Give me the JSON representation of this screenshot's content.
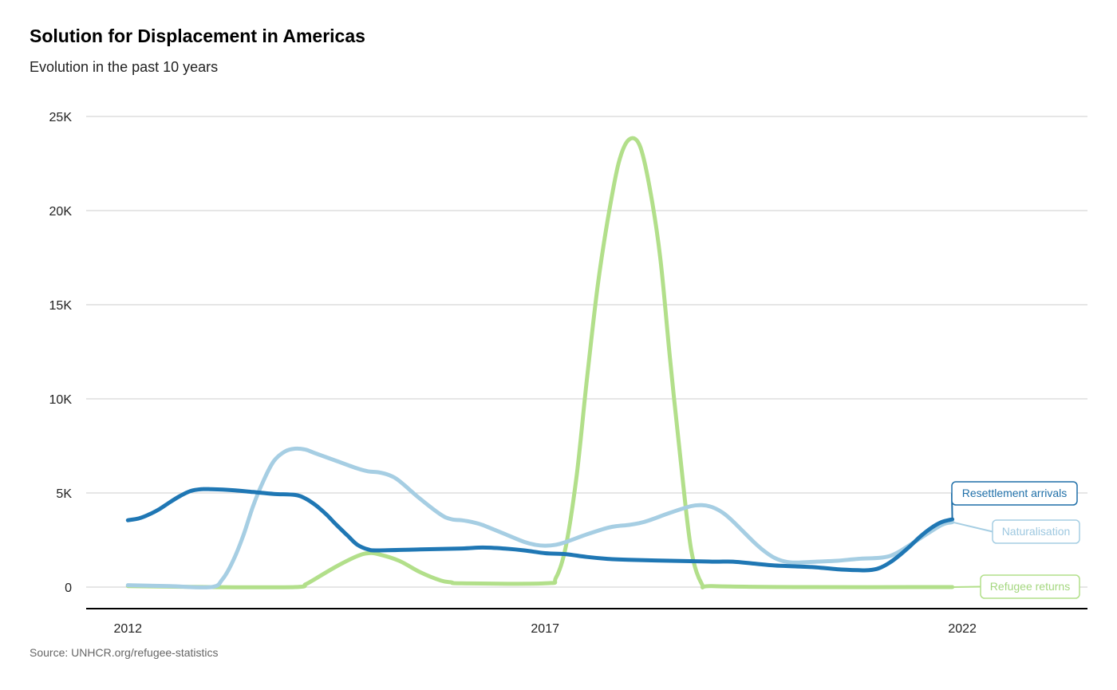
{
  "page": {
    "title": "Solution for Displacement in Americas",
    "subtitle": "Evolution in the past 10 years",
    "source": "Source: UNHCR.org/refugee-statistics"
  },
  "chart_data": {
    "type": "line",
    "title": "Solution for Displacement in Americas",
    "subtitle": "Evolution in the past 10 years",
    "xlabel": "",
    "ylabel": "",
    "xlim": [
      2011.5,
      2023.5
    ],
    "ylim": [
      0,
      25000
    ],
    "x_ticks": [
      2012,
      2017,
      2022
    ],
    "x_tick_labels": [
      "2012",
      "2017",
      "2022"
    ],
    "y_ticks": [
      0,
      5000,
      10000,
      15000,
      20000,
      25000
    ],
    "y_tick_labels": [
      "0",
      "5K",
      "10K",
      "15K",
      "20K",
      "25K"
    ],
    "grid": true,
    "legend": "direct labels at line ends (right)",
    "series": [
      {
        "name": "Resettlement arrivals",
        "color": "#1f77b4",
        "points": [
          [
            2012.0,
            3550
          ],
          [
            2012.13,
            3650
          ],
          [
            2012.25,
            3850
          ],
          [
            2012.38,
            4150
          ],
          [
            2012.5,
            4500
          ],
          [
            2012.63,
            4850
          ],
          [
            2012.75,
            5100
          ],
          [
            2012.88,
            5200
          ],
          [
            2013.0,
            5200
          ],
          [
            2013.25,
            5150
          ],
          [
            2013.5,
            5050
          ],
          [
            2013.75,
            4950
          ],
          [
            2014.0,
            4900
          ],
          [
            2014.13,
            4700
          ],
          [
            2014.25,
            4350
          ],
          [
            2014.38,
            3850
          ],
          [
            2014.5,
            3300
          ],
          [
            2014.63,
            2750
          ],
          [
            2014.75,
            2250
          ],
          [
            2014.88,
            2000
          ],
          [
            2015.0,
            1950
          ],
          [
            2015.5,
            2000
          ],
          [
            2016.0,
            2050
          ],
          [
            2016.25,
            2100
          ],
          [
            2016.5,
            2050
          ],
          [
            2016.75,
            1950
          ],
          [
            2017.0,
            1800
          ],
          [
            2017.25,
            1750
          ],
          [
            2017.5,
            1600
          ],
          [
            2017.75,
            1500
          ],
          [
            2018.0,
            1450
          ],
          [
            2018.5,
            1400
          ],
          [
            2019.0,
            1350
          ],
          [
            2019.25,
            1350
          ],
          [
            2019.5,
            1250
          ],
          [
            2019.75,
            1150
          ],
          [
            2020.0,
            1100
          ],
          [
            2020.25,
            1050
          ],
          [
            2020.5,
            950
          ],
          [
            2020.75,
            900
          ],
          [
            2020.88,
            900
          ],
          [
            2021.0,
            1000
          ],
          [
            2021.13,
            1300
          ],
          [
            2021.25,
            1700
          ],
          [
            2021.38,
            2200
          ],
          [
            2021.5,
            2700
          ],
          [
            2021.63,
            3150
          ],
          [
            2021.75,
            3450
          ],
          [
            2021.88,
            3600
          ]
        ]
      },
      {
        "name": "Naturalisation",
        "color": "#a6cee3",
        "points": [
          [
            2012.0,
            100
          ],
          [
            2012.5,
            50
          ],
          [
            2013.0,
            0
          ],
          [
            2013.13,
            400
          ],
          [
            2013.25,
            1300
          ],
          [
            2013.38,
            2700
          ],
          [
            2013.5,
            4300
          ],
          [
            2013.63,
            5700
          ],
          [
            2013.75,
            6700
          ],
          [
            2013.88,
            7200
          ],
          [
            2014.0,
            7350
          ],
          [
            2014.13,
            7300
          ],
          [
            2014.25,
            7100
          ],
          [
            2014.5,
            6700
          ],
          [
            2014.75,
            6300
          ],
          [
            2014.88,
            6150
          ],
          [
            2015.0,
            6100
          ],
          [
            2015.13,
            5950
          ],
          [
            2015.25,
            5650
          ],
          [
            2015.5,
            4700
          ],
          [
            2015.75,
            3850
          ],
          [
            2015.88,
            3600
          ],
          [
            2016.0,
            3550
          ],
          [
            2016.13,
            3450
          ],
          [
            2016.25,
            3300
          ],
          [
            2016.5,
            2850
          ],
          [
            2016.75,
            2400
          ],
          [
            2016.88,
            2250
          ],
          [
            2017.0,
            2200
          ],
          [
            2017.13,
            2250
          ],
          [
            2017.25,
            2400
          ],
          [
            2017.5,
            2800
          ],
          [
            2017.75,
            3150
          ],
          [
            2017.88,
            3250
          ],
          [
            2018.0,
            3300
          ],
          [
            2018.13,
            3400
          ],
          [
            2018.25,
            3550
          ],
          [
            2018.5,
            3950
          ],
          [
            2018.75,
            4300
          ],
          [
            2018.88,
            4350
          ],
          [
            2019.0,
            4250
          ],
          [
            2019.13,
            3950
          ],
          [
            2019.25,
            3500
          ],
          [
            2019.5,
            2400
          ],
          [
            2019.63,
            1900
          ],
          [
            2019.75,
            1550
          ],
          [
            2019.88,
            1350
          ],
          [
            2020.0,
            1300
          ],
          [
            2020.25,
            1350
          ],
          [
            2020.5,
            1400
          ],
          [
            2020.75,
            1500
          ],
          [
            2021.0,
            1550
          ],
          [
            2021.13,
            1650
          ],
          [
            2021.25,
            1900
          ],
          [
            2021.5,
            2600
          ],
          [
            2021.75,
            3300
          ],
          [
            2021.88,
            3450
          ]
        ]
      },
      {
        "name": "Refugee returns",
        "color": "#b2df8a",
        "points": [
          [
            2012.0,
            50
          ],
          [
            2013.0,
            0
          ],
          [
            2014.0,
            0
          ],
          [
            2014.13,
            150
          ],
          [
            2014.25,
            450
          ],
          [
            2014.5,
            1100
          ],
          [
            2014.75,
            1650
          ],
          [
            2014.88,
            1800
          ],
          [
            2015.0,
            1750
          ],
          [
            2015.25,
            1400
          ],
          [
            2015.5,
            800
          ],
          [
            2015.75,
            350
          ],
          [
            2015.88,
            250
          ],
          [
            2016.0,
            200
          ],
          [
            2017.0,
            200
          ],
          [
            2017.13,
            500
          ],
          [
            2017.25,
            2200
          ],
          [
            2017.38,
            6000
          ],
          [
            2017.5,
            11000
          ],
          [
            2017.63,
            16000
          ],
          [
            2017.75,
            19500
          ],
          [
            2017.88,
            22500
          ],
          [
            2018.0,
            23750
          ],
          [
            2018.13,
            23500
          ],
          [
            2018.25,
            21300
          ],
          [
            2018.38,
            17500
          ],
          [
            2018.5,
            12000
          ],
          [
            2018.63,
            6500
          ],
          [
            2018.75,
            2000
          ],
          [
            2018.88,
            150
          ],
          [
            2019.0,
            50
          ],
          [
            2020.0,
            0
          ],
          [
            2021.88,
            0
          ]
        ]
      }
    ],
    "end_labels": [
      "Resettlement arrivals",
      "Naturalisation",
      "Refugee returns"
    ]
  }
}
